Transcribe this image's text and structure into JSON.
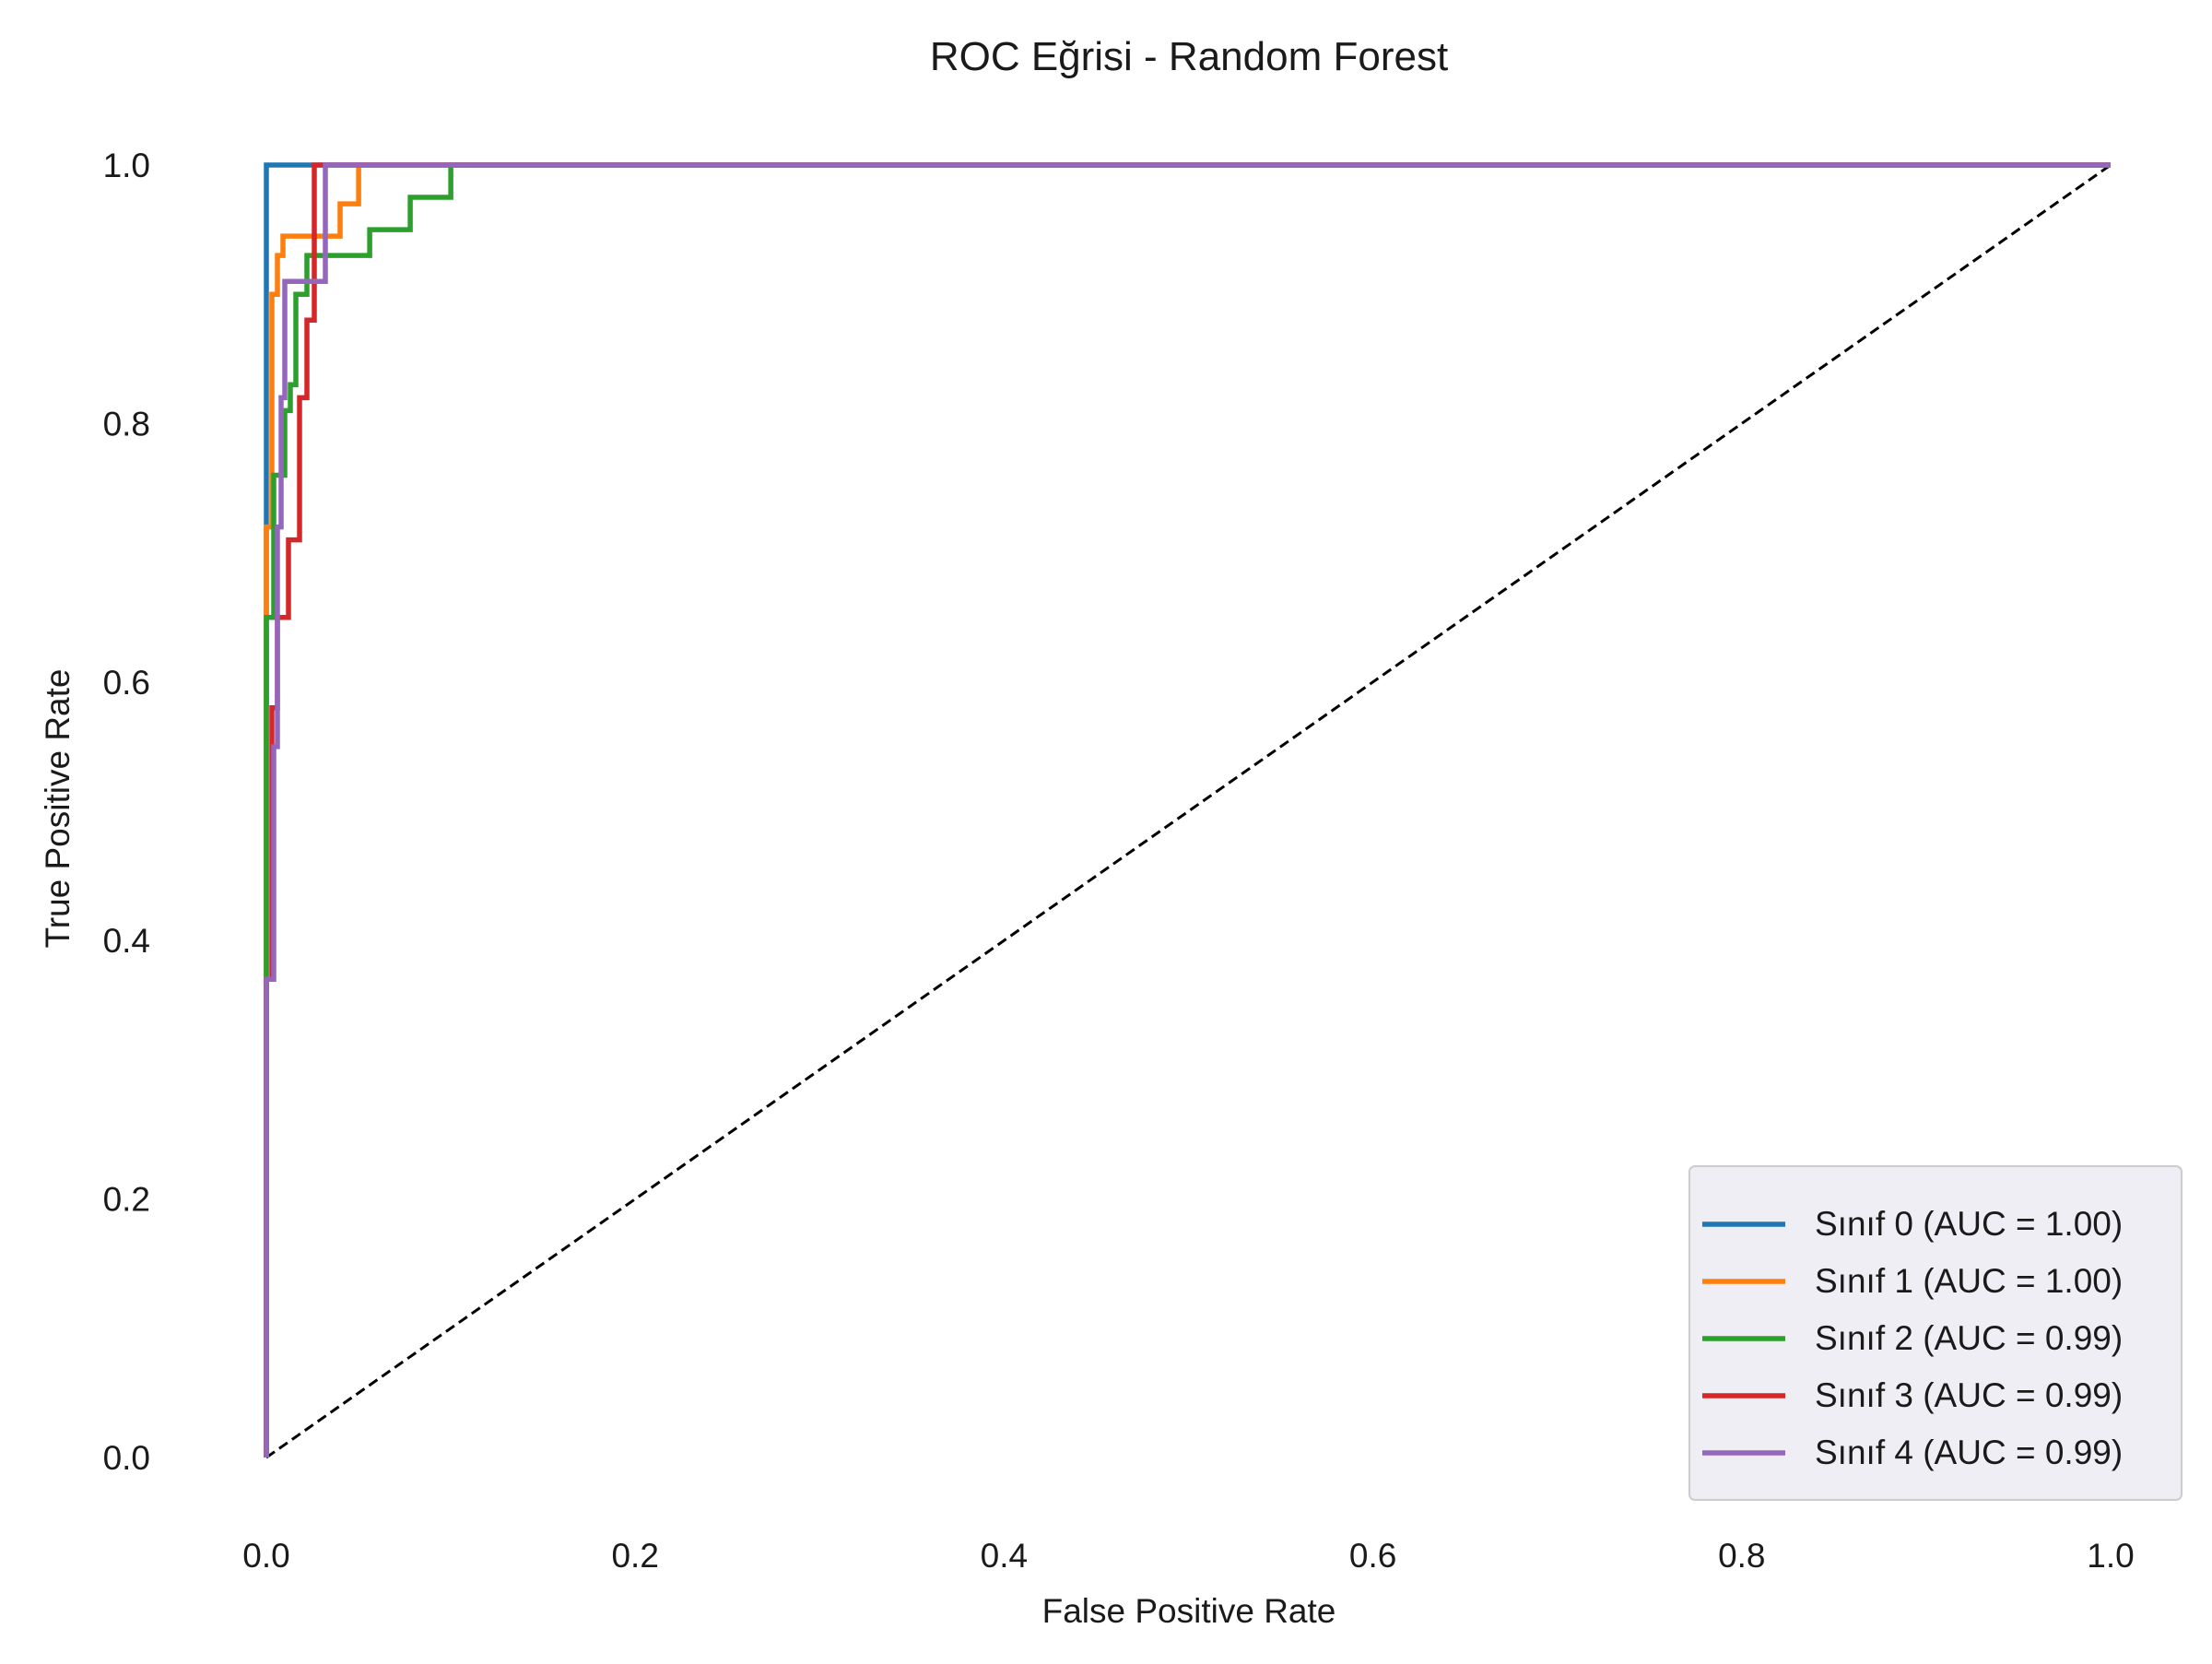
{
  "chart_data": {
    "type": "line",
    "title": "ROC Eğrisi - Random Forest",
    "xlabel": "False Positive Rate",
    "ylabel": "True Positive Rate",
    "xlim": [
      -0.05,
      1.05
    ],
    "ylim": [
      -0.05,
      1.05
    ],
    "xticks": [
      0.0,
      0.2,
      0.4,
      0.6,
      0.8,
      1.0
    ],
    "xtick_labels": [
      "0.0",
      "0.2",
      "0.4",
      "0.6",
      "0.8",
      "1.0"
    ],
    "yticks": [
      0.0,
      0.2,
      0.4,
      0.6,
      0.8,
      1.0
    ],
    "ytick_labels": [
      "0.0",
      "0.2",
      "0.4",
      "0.6",
      "0.8",
      "1.0"
    ],
    "grid": false,
    "legend_position": "lower right",
    "diagonal": {
      "x": [
        0,
        1
      ],
      "y": [
        0,
        1
      ],
      "color": "#000000",
      "style": "dashed"
    },
    "series": [
      {
        "name": "Sınıf 0 (AUC = 1.00)",
        "color": "#1f77b4",
        "x": [
          0,
          0,
          0,
          1
        ],
        "y": [
          0,
          0.65,
          1.0,
          1.0
        ]
      },
      {
        "name": "Sınıf 1 (AUC = 1.00)",
        "color": "#ff7f0e",
        "x": [
          0,
          0,
          0.003,
          0.003,
          0.006,
          0.006,
          0.009,
          0.009,
          0.04,
          0.04,
          0.05,
          0.05,
          1
        ],
        "y": [
          0,
          0.72,
          0.72,
          0.9,
          0.9,
          0.93,
          0.93,
          0.945,
          0.945,
          0.97,
          0.97,
          1.0,
          1.0
        ]
      },
      {
        "name": "Sınıf 2 (AUC = 0.99)",
        "color": "#2ca02c",
        "x": [
          0,
          0,
          0.004,
          0.004,
          0.01,
          0.01,
          0.013,
          0.013,
          0.016,
          0.016,
          0.022,
          0.022,
          0.056,
          0.056,
          0.078,
          0.078,
          0.1,
          0.1,
          1
        ],
        "y": [
          0,
          0.65,
          0.65,
          0.76,
          0.76,
          0.81,
          0.81,
          0.83,
          0.83,
          0.9,
          0.9,
          0.93,
          0.93,
          0.95,
          0.95,
          0.975,
          0.975,
          1.0,
          1.0
        ]
      },
      {
        "name": "Sınıf 3 (AUC = 0.99)",
        "color": "#d62728",
        "x": [
          0,
          0,
          0.003,
          0.003,
          0.006,
          0.006,
          0.012,
          0.012,
          0.018,
          0.018,
          0.022,
          0.022,
          0.026,
          0.026,
          1
        ],
        "y": [
          0,
          0.37,
          0.37,
          0.58,
          0.58,
          0.65,
          0.65,
          0.71,
          0.71,
          0.82,
          0.82,
          0.88,
          0.88,
          1.0,
          1.0
        ]
      },
      {
        "name": "Sınıf 4 (AUC = 0.99)",
        "color": "#9467bd",
        "x": [
          0,
          0,
          0.004,
          0.004,
          0.006,
          0.006,
          0.008,
          0.008,
          0.01,
          0.01,
          0.032,
          0.032,
          1
        ],
        "y": [
          0,
          0.37,
          0.37,
          0.55,
          0.55,
          0.72,
          0.72,
          0.82,
          0.82,
          0.91,
          0.91,
          1.0,
          1.0
        ]
      }
    ]
  }
}
